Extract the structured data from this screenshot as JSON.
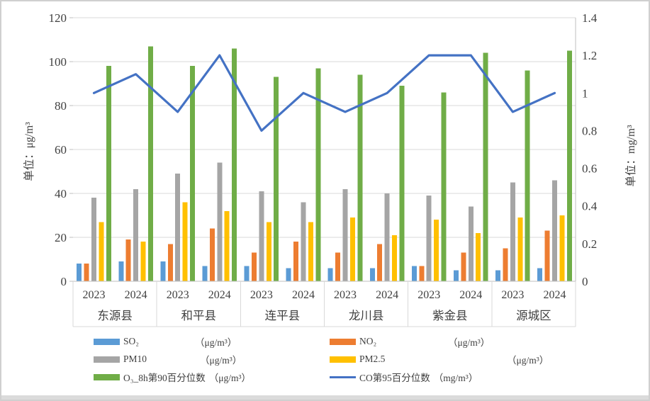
{
  "chart_data": {
    "type": "bar",
    "counties": [
      "东源县",
      "和平县",
      "连平县",
      "龙川县",
      "紫金县",
      "源城区"
    ],
    "years": [
      "2023",
      "2024"
    ],
    "series": [
      {
        "name": "SO₂",
        "unit": "（μg/m³）",
        "color": "#5B9BD5",
        "kind": "bar",
        "values": [
          8,
          9,
          9,
          7,
          7,
          6,
          6,
          6,
          7,
          5,
          5,
          6
        ]
      },
      {
        "name": "NO₂",
        "unit": "（μg/m³）",
        "color": "#ED7D31",
        "kind": "bar",
        "values": [
          8,
          19,
          17,
          24,
          13,
          18,
          13,
          17,
          7,
          13,
          15,
          23
        ]
      },
      {
        "name": "PM10",
        "unit": "（μg/m³）",
        "color": "#A5A5A5",
        "kind": "bar",
        "values": [
          38,
          42,
          49,
          54,
          41,
          36,
          42,
          40,
          39,
          34,
          45,
          46
        ]
      },
      {
        "name": "PM2.5",
        "unit": "（μg/m³）",
        "color": "#FFC000",
        "kind": "bar",
        "values": [
          27,
          18,
          36,
          32,
          27,
          27,
          29,
          21,
          28,
          22,
          29,
          30
        ]
      },
      {
        "name": "O₃_8h第90百分位数",
        "unit": "（μg/m³）",
        "color": "#70AD47",
        "kind": "bar",
        "values": [
          98,
          107,
          98,
          106,
          93,
          97,
          94,
          89,
          86,
          104,
          96,
          105
        ]
      },
      {
        "name": "CO第95百分位数",
        "unit": "（mg/m³）",
        "color": "#4472C4",
        "kind": "line",
        "values": [
          1.0,
          1.1,
          0.9,
          1.2,
          0.8,
          1.0,
          0.9,
          1.0,
          1.2,
          1.2,
          0.9,
          1.0
        ]
      }
    ],
    "left_axis": {
      "title": "单位：μg/m³",
      "min": 0,
      "max": 120,
      "step": 20,
      "ticks": [
        0,
        20,
        40,
        60,
        80,
        100,
        120
      ]
    },
    "right_axis": {
      "title": "单位：mg/m³",
      "min": 0,
      "max": 1.4,
      "step": 0.2,
      "ticks": [
        0,
        0.2,
        0.4,
        0.6,
        0.8,
        1,
        1.2,
        1.4
      ]
    },
    "grid": "horizontal",
    "legend_position": "bottom",
    "colors": {
      "gridline": "#D9D9D9",
      "axis_line": "#BFBFBF",
      "text": "#404040"
    }
  }
}
